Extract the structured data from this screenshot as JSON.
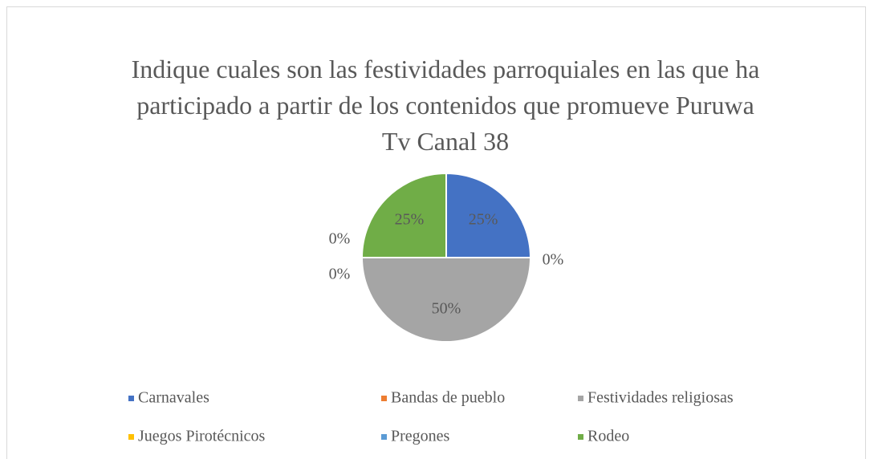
{
  "chart_data": {
    "type": "pie",
    "title": "Indique cuales son las festividades parroquiales en las que ha participado a partir de los contenidos que promueve Puruwa Tv Canal 38",
    "categories": [
      "Carnavales",
      "Bandas de pueblo",
      "Festividades religiosas",
      "Juegos Pirotécnicos",
      "Pregones",
      "Rodeo"
    ],
    "values": [
      25,
      0,
      50,
      0,
      0,
      25
    ],
    "value_labels": [
      "25%",
      "0%",
      "50%",
      "0%",
      "0%",
      "25%"
    ],
    "colors": [
      "#4472c4",
      "#ed7d31",
      "#a5a5a5",
      "#ffc000",
      "#5b9bd5",
      "#70ad47"
    ],
    "legend": "bottom"
  }
}
